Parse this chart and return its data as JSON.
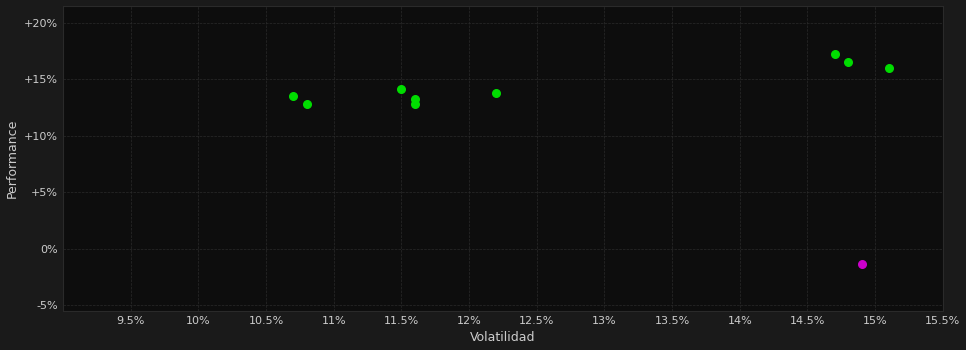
{
  "background_color": "#1a1a1a",
  "plot_bg_color": "#0d0d0d",
  "grid_color": "#2a2a2a",
  "text_color": "#cccccc",
  "xlabel": "Volatilidad",
  "ylabel": "Performance",
  "xlim": [
    0.09,
    0.155
  ],
  "ylim": [
    -0.055,
    0.215
  ],
  "xticks": [
    0.095,
    0.1,
    0.105,
    0.11,
    0.115,
    0.12,
    0.125,
    0.13,
    0.135,
    0.14,
    0.145,
    0.15,
    0.155
  ],
  "xtick_labels": [
    "9.5%",
    "10%",
    "10.5%",
    "11%",
    "11.5%",
    "12%",
    "12.5%",
    "13%",
    "13.5%",
    "14%",
    "14.5%",
    "15%",
    "15.5%"
  ],
  "yticks": [
    -0.05,
    0.0,
    0.05,
    0.1,
    0.15,
    0.2
  ],
  "ytick_labels": [
    "-5%",
    "0%",
    "+5%",
    "+10%",
    "+15%",
    "+20%"
  ],
  "green_points": [
    [
      0.107,
      0.135
    ],
    [
      0.108,
      0.128
    ],
    [
      0.115,
      0.141
    ],
    [
      0.116,
      0.132
    ],
    [
      0.116,
      0.128
    ],
    [
      0.122,
      0.138
    ],
    [
      0.147,
      0.172
    ],
    [
      0.148,
      0.165
    ],
    [
      0.151,
      0.16
    ]
  ],
  "magenta_points": [
    [
      0.149,
      -0.013
    ]
  ],
  "point_size": 30,
  "green_color": "#00dd00",
  "magenta_color": "#cc00cc"
}
